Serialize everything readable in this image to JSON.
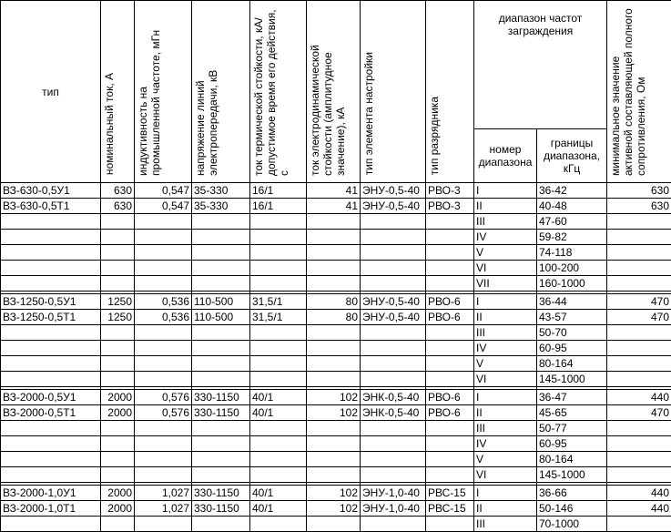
{
  "headers": {
    "type": "тип",
    "rated_current": "номинальный ток, А",
    "inductance": "индуктивность на промышленной частоте, мГн",
    "line_voltage": "напряжение линий электропередачи, кВ",
    "thermal_current": "ток термической стойкости, кА/допустимое время его действия, с",
    "electrodynamic_current": "ток электродинамической стойкости (амплитудное значение), кА",
    "tuning_element": "тип элемента настройки",
    "arrester": "тип разрядника",
    "band_group": "диапазон частот заграждения",
    "band_number": "номер диапазона",
    "band_limits": "границы диапазона, кГц",
    "min_resistance": "минимальное значение активной составляющей полного сопротивления, Ом"
  },
  "groups": [
    {
      "rows": [
        {
          "type": "ВЗ-630-0,5У1",
          "current": "630",
          "inductance": "0,547",
          "voltage": "35-330",
          "thermal": "16/1",
          "dynamic": "41",
          "tuning": "ЭНУ-0,5-40",
          "arrester": "РВО-3",
          "band": "I",
          "limits": "36-42",
          "resistance": "630"
        },
        {
          "type": "ВЗ-630-0,5Т1",
          "current": "630",
          "inductance": "0,547",
          "voltage": "35-330",
          "thermal": "16/1",
          "dynamic": "41",
          "tuning": "ЭНУ-0,5-40",
          "arrester": "РВО-3",
          "band": "II",
          "limits": "40-48",
          "resistance": "630"
        },
        {
          "type": "",
          "current": "",
          "inductance": "",
          "voltage": "",
          "thermal": "",
          "dynamic": "",
          "tuning": "",
          "arrester": "",
          "band": "III",
          "limits": "47-60",
          "resistance": ""
        },
        {
          "type": "",
          "current": "",
          "inductance": "",
          "voltage": "",
          "thermal": "",
          "dynamic": "",
          "tuning": "",
          "arrester": "",
          "band": "IV",
          "limits": "59-82",
          "resistance": ""
        },
        {
          "type": "",
          "current": "",
          "inductance": "",
          "voltage": "",
          "thermal": "",
          "dynamic": "",
          "tuning": "",
          "arrester": "",
          "band": "V",
          "limits": "74-118",
          "resistance": ""
        },
        {
          "type": "",
          "current": "",
          "inductance": "",
          "voltage": "",
          "thermal": "",
          "dynamic": "",
          "tuning": "",
          "arrester": "",
          "band": "VI",
          "limits": "100-200",
          "resistance": ""
        },
        {
          "type": "",
          "current": "",
          "inductance": "",
          "voltage": "",
          "thermal": "",
          "dynamic": "",
          "tuning": "",
          "arrester": "",
          "band": "VII",
          "limits": "160-1000",
          "resistance": ""
        }
      ]
    },
    {
      "rows": [
        {
          "type": "ВЗ-1250-0,5У1",
          "current": "1250",
          "inductance": "0,536",
          "voltage": "110-500",
          "thermal": "31,5/1",
          "dynamic": "80",
          "tuning": "ЭНУ-0,5-40",
          "arrester": "РВО-6",
          "band": "I",
          "limits": "36-44",
          "resistance": "470"
        },
        {
          "type": "ВЗ-1250-0,5Т1",
          "current": "1250",
          "inductance": "0,536",
          "voltage": "110-500",
          "thermal": "31,5/1",
          "dynamic": "80",
          "tuning": "ЭНУ-0,5-40",
          "arrester": "РВО-6",
          "band": "II",
          "limits": "43-57",
          "resistance": "470"
        },
        {
          "type": "",
          "current": "",
          "inductance": "",
          "voltage": "",
          "thermal": "",
          "dynamic": "",
          "tuning": "",
          "arrester": "",
          "band": "III",
          "limits": "50-70",
          "resistance": ""
        },
        {
          "type": "",
          "current": "",
          "inductance": "",
          "voltage": "",
          "thermal": "",
          "dynamic": "",
          "tuning": "",
          "arrester": "",
          "band": "IV",
          "limits": "60-95",
          "resistance": ""
        },
        {
          "type": "",
          "current": "",
          "inductance": "",
          "voltage": "",
          "thermal": "",
          "dynamic": "",
          "tuning": "",
          "arrester": "",
          "band": "V",
          "limits": "80-164",
          "resistance": ""
        },
        {
          "type": "",
          "current": "",
          "inductance": "",
          "voltage": "",
          "thermal": "",
          "dynamic": "",
          "tuning": "",
          "arrester": "",
          "band": "VI",
          "limits": "145-1000",
          "resistance": ""
        }
      ]
    },
    {
      "rows": [
        {
          "type": "ВЗ-2000-0,5У1",
          "current": "2000",
          "inductance": "0,576",
          "voltage": "330-1150",
          "thermal": "40/1",
          "dynamic": "102",
          "tuning": "ЭНК-0,5-40",
          "arrester": "РВО-6",
          "band": "I",
          "limits": "36-47",
          "resistance": "440"
        },
        {
          "type": "ВЗ-2000-0,5Т1",
          "current": "2000",
          "inductance": "0,576",
          "voltage": "330-1150",
          "thermal": "40/1",
          "dynamic": "102",
          "tuning": "ЭНК-0,5-40",
          "arrester": "РВО-6",
          "band": "II",
          "limits": "45-65",
          "resistance": "470"
        },
        {
          "type": "",
          "current": "",
          "inductance": "",
          "voltage": "",
          "thermal": "",
          "dynamic": "",
          "tuning": "",
          "arrester": "",
          "band": "III",
          "limits": "50-77",
          "resistance": ""
        },
        {
          "type": "",
          "current": "",
          "inductance": "",
          "voltage": "",
          "thermal": "",
          "dynamic": "",
          "tuning": "",
          "arrester": "",
          "band": "IV",
          "limits": "60-95",
          "resistance": ""
        },
        {
          "type": "",
          "current": "",
          "inductance": "",
          "voltage": "",
          "thermal": "",
          "dynamic": "",
          "tuning": "",
          "arrester": "",
          "band": "V",
          "limits": "80-164",
          "resistance": ""
        },
        {
          "type": "",
          "current": "",
          "inductance": "",
          "voltage": "",
          "thermal": "",
          "dynamic": "",
          "tuning": "",
          "arrester": "",
          "band": "VI",
          "limits": "145-1000",
          "resistance": ""
        }
      ]
    },
    {
      "rows": [
        {
          "type": "ВЗ-2000-1,0У1",
          "current": "2000",
          "inductance": "1,027",
          "voltage": "330-1150",
          "thermal": "40/1",
          "dynamic": "102",
          "tuning": "ЭНУ-1,0-40",
          "arrester": "РВС-15",
          "band": "I",
          "limits": "36-66",
          "resistance": "440"
        },
        {
          "type": "ВЗ-2000-1,0Т1",
          "current": "2000",
          "inductance": "1,027",
          "voltage": "330-1150",
          "thermal": "40/1",
          "dynamic": "102",
          "tuning": "ЭНУ-1,0-40",
          "arrester": "РВС-15",
          "band": "II",
          "limits": "50-146",
          "resistance": "440"
        },
        {
          "type": "",
          "current": "",
          "inductance": "",
          "voltage": "",
          "thermal": "",
          "dynamic": "",
          "tuning": "",
          "arrester": "",
          "band": "III",
          "limits": "70-1000",
          "resistance": ""
        }
      ]
    }
  ]
}
